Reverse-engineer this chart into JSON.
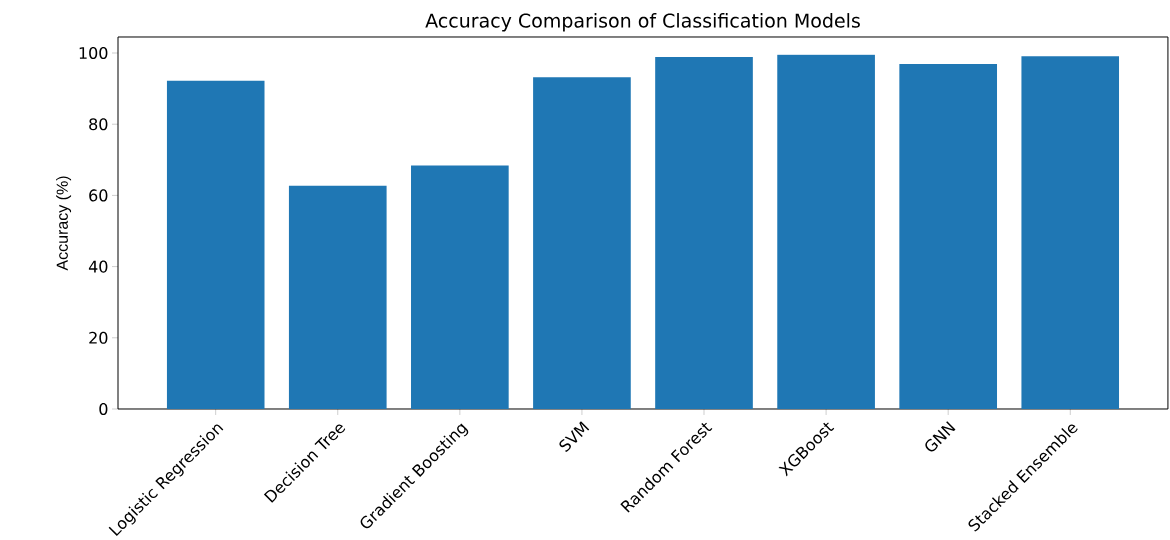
{
  "chart_data": {
    "type": "bar",
    "title": "Accuracy Comparison of Classification Models",
    "ylabel": "Accuracy (%)",
    "categories": [
      "Logistic Regression",
      "Decision Tree",
      "Gradient Boosting",
      "SVM",
      "Random Forest",
      "XGBoost",
      "GNN",
      "Stacked Ensemble"
    ],
    "values": [
      92.2,
      62.7,
      68.4,
      93.2,
      98.9,
      99.5,
      96.9,
      99.1
    ],
    "color": "#1f77b4",
    "ylim": [
      0,
      104.5
    ],
    "yticks": [
      0,
      20,
      40,
      60,
      80,
      100
    ],
    "grid": false
  }
}
